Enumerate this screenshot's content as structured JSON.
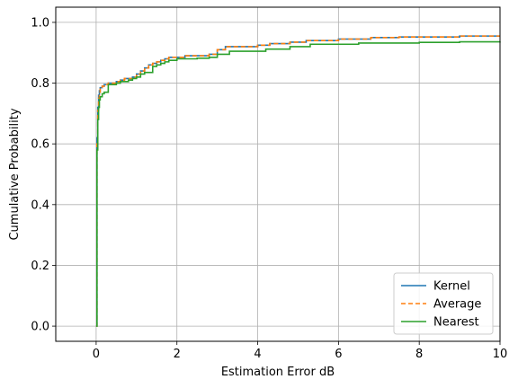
{
  "chart_data": {
    "type": "line",
    "title": "",
    "xlabel": "Estimation Error dB",
    "ylabel": "Cumulative Probability",
    "xlim": [
      -1,
      10
    ],
    "ylim": [
      -0.05,
      1.05
    ],
    "xticks": [
      0,
      2,
      4,
      6,
      8,
      10
    ],
    "yticks": [
      0.0,
      0.2,
      0.4,
      0.6,
      0.8,
      1.0
    ],
    "xtick_labels": [
      "0",
      "2",
      "4",
      "6",
      "8",
      "10"
    ],
    "ytick_labels": [
      "0.0",
      "0.2",
      "0.4",
      "0.6",
      "0.8",
      "1.0"
    ],
    "grid": true,
    "legend_position": "bottom-right",
    "series": [
      {
        "name": "Kernel",
        "color": "#1f77b4",
        "dash": "solid",
        "x": [
          0,
          0.02,
          0.04,
          0.06,
          0.08,
          0.1,
          0.15,
          0.2,
          0.3,
          0.5,
          0.6,
          0.7,
          0.8,
          0.9,
          1.0,
          1.1,
          1.2,
          1.3,
          1.4,
          1.5,
          1.6,
          1.7,
          1.8,
          2.0,
          2.2,
          2.5,
          2.8,
          3.0,
          3.2,
          3.5,
          4.0,
          4.3,
          4.8,
          5.2,
          6.0,
          6.8,
          7.5,
          9.0,
          10.0
        ],
        "y": [
          0.0,
          0.62,
          0.72,
          0.76,
          0.775,
          0.785,
          0.79,
          0.795,
          0.8,
          0.805,
          0.81,
          0.815,
          0.815,
          0.82,
          0.83,
          0.84,
          0.85,
          0.86,
          0.865,
          0.87,
          0.875,
          0.88,
          0.885,
          0.885,
          0.89,
          0.89,
          0.895,
          0.91,
          0.92,
          0.92,
          0.925,
          0.93,
          0.935,
          0.94,
          0.945,
          0.95,
          0.952,
          0.955,
          0.955
        ]
      },
      {
        "name": "Average",
        "color": "#ff7f0e",
        "dash": "dashed",
        "x": [
          0,
          0.02,
          0.04,
          0.06,
          0.08,
          0.1,
          0.15,
          0.2,
          0.3,
          0.5,
          0.6,
          0.7,
          0.8,
          0.9,
          1.0,
          1.1,
          1.2,
          1.3,
          1.4,
          1.5,
          1.6,
          1.7,
          1.8,
          2.0,
          2.2,
          2.5,
          2.8,
          3.0,
          3.2,
          3.5,
          4.0,
          4.3,
          4.8,
          5.2,
          6.0,
          6.8,
          7.5,
          9.0,
          10.0
        ],
        "y": [
          0.0,
          0.6,
          0.71,
          0.75,
          0.77,
          0.78,
          0.79,
          0.795,
          0.8,
          0.805,
          0.81,
          0.815,
          0.815,
          0.82,
          0.83,
          0.84,
          0.85,
          0.86,
          0.865,
          0.87,
          0.875,
          0.88,
          0.885,
          0.885,
          0.89,
          0.89,
          0.895,
          0.91,
          0.92,
          0.92,
          0.925,
          0.93,
          0.935,
          0.94,
          0.945,
          0.95,
          0.952,
          0.955,
          0.955
        ]
      },
      {
        "name": "Nearest",
        "color": "#2ca02c",
        "dash": "solid",
        "x": [
          0,
          0.02,
          0.04,
          0.06,
          0.08,
          0.1,
          0.15,
          0.2,
          0.3,
          0.5,
          0.6,
          0.7,
          0.8,
          0.9,
          1.0,
          1.1,
          1.2,
          1.4,
          1.5,
          1.6,
          1.7,
          1.8,
          2.0,
          2.5,
          2.8,
          3.0,
          3.3,
          3.8,
          4.2,
          4.8,
          5.3,
          6.5,
          8.0,
          9.0,
          10.0
        ],
        "y": [
          0.0,
          0.58,
          0.68,
          0.72,
          0.745,
          0.755,
          0.765,
          0.77,
          0.795,
          0.8,
          0.805,
          0.805,
          0.81,
          0.815,
          0.82,
          0.83,
          0.835,
          0.855,
          0.86,
          0.865,
          0.87,
          0.875,
          0.88,
          0.882,
          0.885,
          0.895,
          0.905,
          0.905,
          0.912,
          0.92,
          0.928,
          0.932,
          0.934,
          0.936,
          0.937
        ]
      }
    ]
  }
}
